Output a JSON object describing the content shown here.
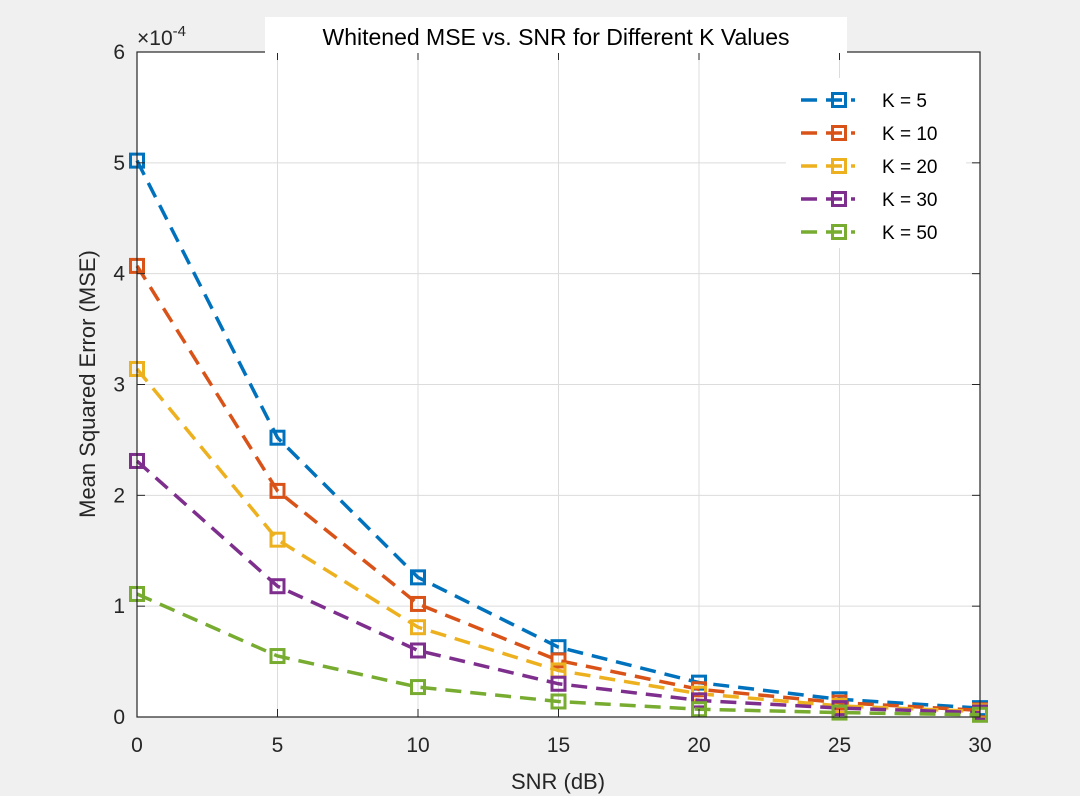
{
  "chart_data": {
    "type": "line",
    "title": "Whitened MSE vs. SNR for Different K Values",
    "xlabel": "SNR (dB)",
    "ylabel": "Mean Squared Error (MSE)",
    "y_exponent_base": "×10",
    "y_exponent_power": "-4",
    "x": [
      0,
      5,
      10,
      15,
      20,
      25,
      30
    ],
    "xlim": [
      0,
      30
    ],
    "ylim": [
      0,
      6
    ],
    "xticks": [
      0,
      5,
      10,
      15,
      20,
      25,
      30
    ],
    "yticks": [
      0,
      1,
      2,
      3,
      4,
      5,
      6
    ],
    "grid": true,
    "legend_position": "top-right",
    "series": [
      {
        "name": "K = 5",
        "color": "#0072BD",
        "values": [
          5.02,
          2.52,
          1.26,
          0.63,
          0.31,
          0.16,
          0.08
        ]
      },
      {
        "name": "K = 10",
        "color": "#D95319",
        "values": [
          4.07,
          2.04,
          1.02,
          0.51,
          0.25,
          0.13,
          0.06
        ]
      },
      {
        "name": "K = 20",
        "color": "#EDB120",
        "values": [
          3.14,
          1.6,
          0.81,
          0.42,
          0.21,
          0.1,
          0.05
        ]
      },
      {
        "name": "K = 30",
        "color": "#7E2F8E",
        "values": [
          2.31,
          1.18,
          0.6,
          0.3,
          0.15,
          0.08,
          0.04
        ]
      },
      {
        "name": "K = 50",
        "color": "#77AC30",
        "values": [
          1.11,
          0.55,
          0.27,
          0.14,
          0.07,
          0.04,
          0.02
        ]
      }
    ]
  }
}
